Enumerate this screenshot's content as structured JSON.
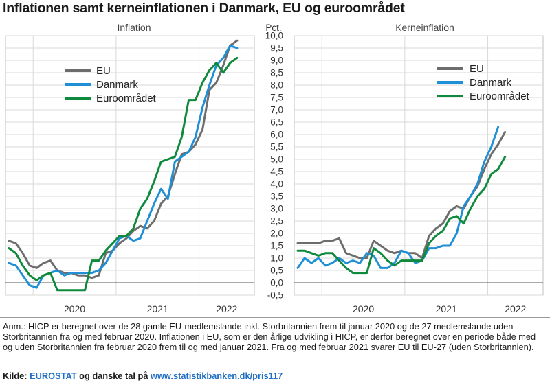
{
  "title": "Inflationen samt kerneinflationen i Danmark, EU og euroområdet",
  "note": "Anm.: HICP er beregnet over de 28 gamle EU-medlemslande inkl. Storbritannien frem til januar 2020 og de 27 medlemslande uden Storbritannien fra og med februar 2020. Inflationen i EU, som er den årlige udvikling i HICP, er derfor beregnet over en periode både med og uden Storbritannien fra februar 2020 frem til og med januar 2021. Fra og med februar 2021 svarer EU til EU-27 (uden Storbritannien).",
  "source": {
    "prefix": "Kilde:",
    "eurostat": "EUROSTAT",
    "middle": "og danske tal på",
    "url": "www.statistikbanken.dk/pris117"
  },
  "colors": {
    "EU": "#6d6d6d",
    "Danmark": "#1f8fd6",
    "Euroområdet": "#0f8a3c",
    "grid": "#d9d9d9",
    "frame": "#bfbfbf"
  },
  "chart_data": [
    {
      "type": "line",
      "title": "Inflation",
      "ylabel": "Pct.",
      "ylim": [
        -0.5,
        10.0
      ],
      "yticks": [
        "10,0",
        "9,5",
        "9,0",
        "8,5",
        "8,0",
        "7,5",
        "7,0",
        "6,5",
        "6,0",
        "5,5",
        "5,0",
        "4,5",
        "4,0",
        "3,5",
        "3,0",
        "2,5",
        "2,0",
        "1,5",
        "1,0",
        "0,5",
        "0,0",
        "-0,5"
      ],
      "xticks": [
        "2020",
        "2021",
        "2022"
      ],
      "x_start": "2019-09",
      "x_end": "2022-09",
      "legend_position": "top-left",
      "series": [
        {
          "name": "EU",
          "values": [
            1.7,
            1.6,
            1.2,
            0.7,
            0.6,
            0.8,
            0.9,
            0.5,
            0.4,
            0.4,
            0.3,
            0.3,
            0.2,
            0.3,
            1.2,
            1.3,
            1.6,
            1.8,
            2.1,
            2.3,
            2.2,
            2.5,
            3.2,
            3.5,
            4.4,
            5.2,
            5.3,
            5.6,
            6.2,
            7.8,
            8.1,
            8.8,
            9.6,
            9.8
          ]
        },
        {
          "name": "Danmark",
          "values": [
            0.8,
            0.7,
            0.3,
            -0.1,
            -0.2,
            0.3,
            0.4,
            0.5,
            0.3,
            0.4,
            0.4,
            0.4,
            0.4,
            0.5,
            0.8,
            1.3,
            1.8,
            1.9,
            1.7,
            1.8,
            2.5,
            3.2,
            3.8,
            3.4,
            4.9,
            5.1,
            5.3,
            5.9,
            7.1,
            8.0,
            8.8,
            9.1,
            9.6,
            9.5
          ]
        },
        {
          "name": "Euroområdet",
          "values": [
            1.4,
            1.2,
            0.7,
            0.3,
            0.1,
            0.3,
            0.4,
            -0.3,
            -0.3,
            -0.3,
            -0.3,
            -0.3,
            0.9,
            0.9,
            1.3,
            1.6,
            1.9,
            1.9,
            2.2,
            3.0,
            3.4,
            4.1,
            4.9,
            5.0,
            5.1,
            5.9,
            7.4,
            7.4,
            8.1,
            8.6,
            8.9,
            8.5,
            8.9,
            9.1
          ]
        }
      ]
    },
    {
      "type": "line",
      "title": "Kerneinflation",
      "ylim": [
        -0.5,
        10.0
      ],
      "xticks": [
        "2020",
        "2021",
        "2022"
      ],
      "x_start": "2019-09",
      "x_end": "2022-09",
      "legend_position": "top-center",
      "series": [
        {
          "name": "EU",
          "values": [
            1.6,
            1.6,
            1.6,
            1.6,
            1.7,
            1.7,
            1.8,
            1.2,
            1.1,
            1.0,
            1.0,
            1.7,
            1.5,
            1.3,
            1.2,
            1.3,
            1.2,
            1.2,
            1.0,
            1.9,
            2.2,
            2.4,
            2.9,
            3.1,
            3.0,
            3.5,
            3.9,
            4.6,
            5.2,
            5.6,
            6.1
          ]
        },
        {
          "name": "Danmark",
          "values": [
            0.6,
            1.0,
            0.8,
            1.0,
            0.7,
            0.8,
            1.0,
            0.8,
            0.9,
            0.8,
            1.2,
            1.1,
            0.6,
            0.6,
            0.8,
            1.3,
            1.2,
            0.8,
            0.9,
            1.4,
            1.4,
            1.5,
            1.5,
            2.0,
            3.1,
            3.5,
            4.0,
            4.9,
            5.5,
            6.3
          ]
        },
        {
          "name": "Euroområdet",
          "values": [
            1.3,
            1.3,
            1.2,
            1.1,
            1.2,
            1.2,
            0.9,
            0.6,
            0.4,
            0.4,
            0.4,
            1.4,
            1.2,
            0.9,
            0.7,
            0.9,
            0.9,
            0.9,
            0.9,
            1.6,
            1.9,
            2.1,
            2.6,
            2.7,
            2.4,
            3.0,
            3.5,
            3.8,
            4.4,
            4.6,
            5.1
          ]
        }
      ]
    }
  ]
}
